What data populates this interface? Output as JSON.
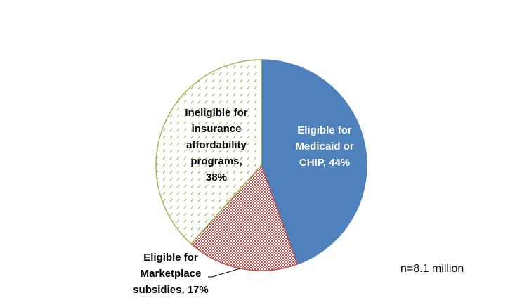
{
  "chart_data": {
    "type": "pie",
    "title": "",
    "slices": [
      {
        "label_lines": [
          "Eligible for",
          "Medicaid or",
          "CHIP, 44%"
        ],
        "value": 44,
        "color": "#4f81bd",
        "pattern": "solid"
      },
      {
        "label_lines": [
          "Eligible for",
          "Marketplace",
          "subsidies, 17%"
        ],
        "value": 17,
        "color": "#c0504d",
        "pattern": "checker"
      },
      {
        "label_lines": [
          "Ineligible for",
          "insurance",
          "affordability",
          "programs,",
          "38%"
        ],
        "value": 38,
        "color": "#9bbb59",
        "pattern": "dashed-diagonal"
      }
    ],
    "start_angle": "top",
    "direction": "clockwise",
    "annotation": "n=8.1 million"
  }
}
